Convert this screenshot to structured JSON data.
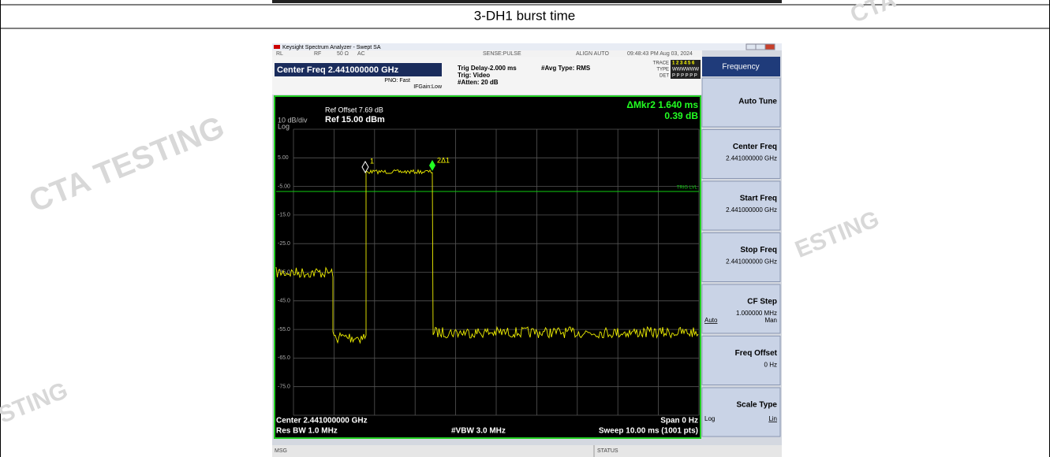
{
  "caption": "3-DH1 burst time",
  "watermarks": [
    "CTA TESTING",
    "CTA",
    "ESTING",
    "STING"
  ],
  "window": {
    "title": "Keysight Spectrum Analyzer - Swept SA"
  },
  "status_row": [
    "RL",
    "RF",
    "50 Ω",
    "AC",
    "SENSE:PULSE",
    "ALIGN AUTO",
    "09:48:43 PM Aug 03, 2024"
  ],
  "settings": {
    "center_freq": "Center Freq 2.441000000 GHz",
    "pno": "PNO: Fast",
    "ifgain": "IFGain:Low",
    "trig_delay": "Trig Delay-2.000 ms",
    "trig": "Trig: Video",
    "atten": "#Atten: 20 dB",
    "avg": "#Avg Type: RMS",
    "trace_labels": [
      "TRACE",
      "TYPE",
      "DET"
    ],
    "trace": "1 2 3 4 5 6",
    "type": "WWWWWW",
    "det": "P P P P P P"
  },
  "plot": {
    "ref_offset": "Ref Offset 7.69 dB",
    "ref": "Ref 15.00 dBm",
    "scale": "10 dB/div",
    "log": "Log",
    "marker": "ΔMkr2 1.640 ms",
    "marker_value": "0.39 dB",
    "y_labels": [
      "5.00",
      "-5.00",
      "-15.0",
      "-25.0",
      "-35.0",
      "-45.0",
      "-55.0",
      "-65.0",
      "-75.0"
    ],
    "trig_lvl": "TRIG LVL",
    "markers": [
      "1",
      "2Δ1"
    ]
  },
  "footer": {
    "center": "Center 2.441000000 GHz",
    "rbw": "Res BW 1.0 MHz",
    "vbw": "#VBW 3.0 MHz",
    "span": "Span 0 Hz",
    "sweep": "Sweep 10.00 ms (1001 pts)"
  },
  "statusbar": {
    "msg": "MSG",
    "status": "STATUS"
  },
  "softkeys": {
    "menu": "Frequency",
    "keys": [
      {
        "label": "Auto Tune"
      },
      {
        "label": "Center Freq",
        "value": "2.441000000 GHz"
      },
      {
        "label": "Start Freq",
        "value": "2.441000000 GHz"
      },
      {
        "label": "Stop Freq",
        "value": "2.441000000 GHz"
      },
      {
        "label": "CF Step",
        "value": "1.000000 MHz",
        "options": [
          "Auto",
          "Man"
        ]
      },
      {
        "label": "Freq Offset",
        "value": "0 Hz"
      },
      {
        "label": "Scale Type",
        "options": [
          "Log",
          "Lin"
        ]
      }
    ]
  }
}
